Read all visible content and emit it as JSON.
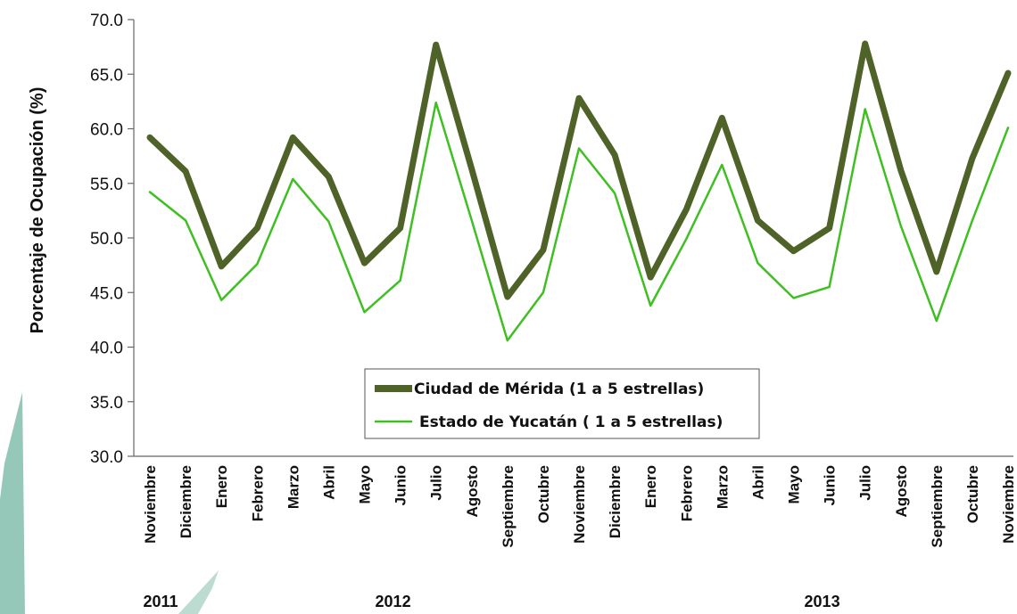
{
  "chart_data": {
    "type": "line",
    "title": "",
    "ylabel": "Porcentaje de Ocupación (%)",
    "xlabel": "",
    "ylim": [
      30.0,
      70.0
    ],
    "yticks": [
      "30.0",
      "35.0",
      "40.0",
      "45.0",
      "50.0",
      "55.0",
      "60.0",
      "65.0",
      "70.0"
    ],
    "grid": false,
    "legend_position": "bottom-center",
    "categories": [
      "Noviembre",
      "Diciembre",
      "Enero",
      "Febrero",
      "Marzo",
      "Abril",
      "Mayo",
      "Junio",
      "Julio",
      "Agosto",
      "Septiembre",
      "Octubre",
      "Noviembre",
      "Diciembre",
      "Enero",
      "Febrero",
      "Marzo",
      "Abril",
      "Mayo",
      "Junio",
      "Julio",
      "Agosto",
      "Septiembre",
      "Octubre",
      "Noviembre"
    ],
    "years": [
      {
        "label": "2011",
        "category_index": 0.3
      },
      {
        "label": "2012",
        "category_index": 6.8
      },
      {
        "label": "2013",
        "category_index": 18.8
      }
    ],
    "series": [
      {
        "name": "Ciudad de Mérida (1 a 5 estrellas)",
        "color": "#4f6228",
        "values": [
          59.2,
          56.1,
          47.4,
          50.9,
          59.2,
          55.6,
          47.7,
          50.9,
          67.7,
          56.3,
          44.6,
          48.9,
          62.8,
          57.6,
          46.4,
          52.6,
          61.0,
          51.6,
          48.8,
          50.9,
          67.8,
          56.2,
          46.9,
          57.3,
          65.1
        ]
      },
      {
        "name": "Estado de Yucatán ( 1 a 5 estrellas)",
        "color": "#3fbf22",
        "values": [
          54.2,
          51.6,
          44.3,
          47.6,
          55.4,
          51.5,
          43.2,
          46.1,
          62.4,
          51.6,
          40.6,
          45.0,
          58.2,
          54.1,
          43.8,
          49.9,
          56.7,
          47.7,
          44.5,
          45.5,
          61.8,
          51.1,
          42.4,
          51.6,
          60.1
        ]
      }
    ]
  }
}
